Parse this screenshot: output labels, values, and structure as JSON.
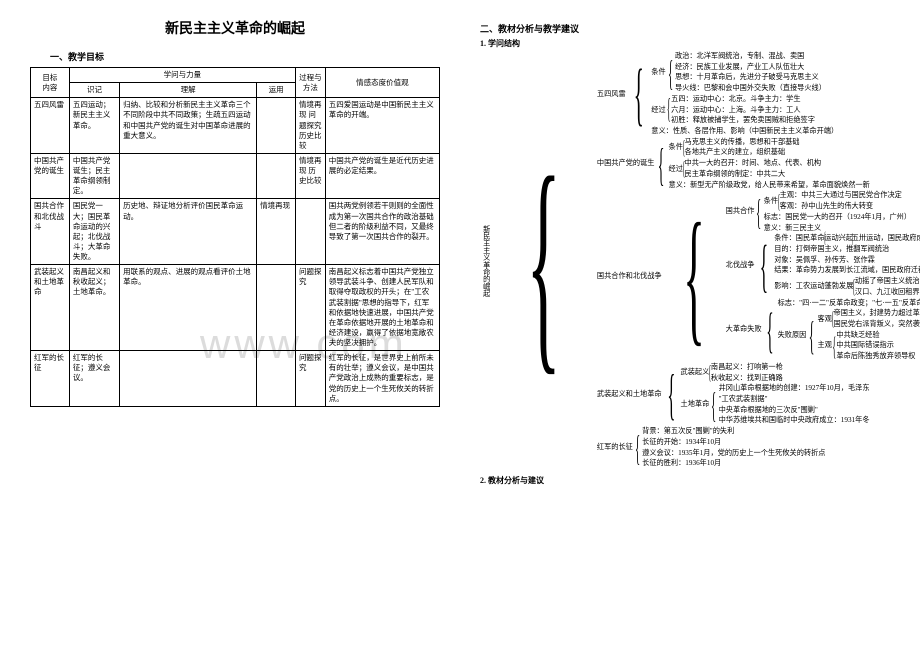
{
  "title": "新民主主义革命的崛起",
  "left": {
    "section1": "一、教学目标",
    "table": {
      "hdr_target": "目标",
      "hdr_content": "内容",
      "hdr_knowledge": "学问与力量",
      "hdr_memory": "识记",
      "hdr_understand": "理解",
      "hdr_apply": "运用",
      "hdr_process": "过程与方法",
      "hdr_values": "情感态度价值观",
      "rows": [
        {
          "c1": "五四风雷",
          "c2": "五四运动；新民主主义革命。",
          "c3": "归纳、比较和分析新民主主义革命三个不同阶段中共不同政策；生疏五四运动和中国共产党的诞生对中国革命进展的重大意义。",
          "c4": "",
          "c5": "情境再现 问题探究 历史比较",
          "c6": "五四爱国运动是中国新民主主义革命的开端。"
        },
        {
          "c1": "中国共产党的诞生",
          "c2": "中国共产党诞生；民主革命纲领制定。",
          "c3": "",
          "c4": "",
          "c5": "情境再现 历史比较",
          "c6": "中国共产党的诞生是近代历史进展的必定结果。"
        },
        {
          "c1": "国共合作和北伐战斗",
          "c2": "国民党一大；国民革命运动的兴起；北伐战斗；大革命失败。",
          "c3": "历史地、辩证地分析评价国民革命运动。",
          "c4": "情境再现",
          "c5": "",
          "c6": "国共两党例领若干则则的全面性成为第一次国共合作的政治基础 但二者的阶级利益不同，又最终导致了第一次国共合作的裂开。"
        },
        {
          "c1": "武装起义和土地革命",
          "c2": "南昌起义和秋收起义；土地革命。",
          "c3": "用联系的观点、进展的观点看评价土地革命。",
          "c4": "",
          "c5": "问题探究",
          "c6": "南昌起义标志着中国共产党独立领导武装斗争、创建人民军队和取得夺取政权的开头；在\"工农武装割据\"思想的指导下，红军和依据地快速进展，中国共产党在革命依据地开展的土地革命和经济建设，赢得了依据地宽敞农夫的坚决拥护。"
        },
        {
          "c1": "红军的长征",
          "c2": "红军的长征；遵义会议。",
          "c3": "",
          "c4": "",
          "c5": "问题探究",
          "c6": "红军的长征，是世界史上前所未有的壮举；遵义会议，是中国共产党政治上成熟的重要标志，是党的历史上一个生死攸关的转折点。"
        }
      ]
    }
  },
  "right": {
    "section2": "二、教材分析与教学建议",
    "sub1": "1. 学问结构",
    "sub2": "2. 教材分析与建议",
    "tree": {
      "root": "新民主主义革命的崛起",
      "n1": {
        "label": "五四风雷",
        "cond_label": "条件",
        "cond": [
          "政治：北洋军阀统治，专制、混战、卖国",
          "经济：民族工业发展，产业工人队伍壮大",
          "思想：十月革命后，先进分子破受马克思主义",
          "导火线：巴黎和会中国外交失败（直接导火线）"
        ],
        "proc_label": "经过",
        "proc": [
          "五四：运动中心：北京。斗争主力：学生",
          "六月：运动中心：上海。斗争主力：工人",
          "初胜：释放被捕学生，罢免卖国贼和拒绝签字"
        ],
        "sig_label": "意义",
        "sig": [
          "意义：性质、各层作用、影响（中国新民主主义革命开端）"
        ]
      },
      "n2": {
        "label": "中国共产党的诞生",
        "cond": [
          "条件",
          "马克思主义的传播，思想和干部基础",
          "各地共产主义的建立，组织基础"
        ],
        "proc": [
          "经过",
          "中共一大的召开：时间、地点、代表、机构",
          "民主革命纲领的制定：中共二大"
        ],
        "sig": [
          "意义：新型无产阶级政党，给人民带来希望，革命面貌焕然一新"
        ]
      },
      "n3": {
        "label": "国共合作和北伐战争",
        "gg_label": "国共合作",
        "gg": [
          "条件",
          "主观：中共三大通过与国民党合作决定",
          "客观：孙中山先生的伟大转变",
          "标志：国民党一大的召开（1924年1月，广州）",
          "意义：新三民主义"
        ],
        "bf_label": "北伐战争",
        "bf": [
          "条件：国民革命",
          "运动兴起",
          "五卅运动，国民政府成立，广东革命根据地统一",
          "目的：打倒帝国主义，推翻军阀统治",
          "对象：吴佩孚、孙传芳、张作霖",
          "结果：革命势力发展到长江流域，国民政府迁都武汉",
          "影响：工农运动蓬勃发展",
          "大力",
          "动摇了帝国主义统治中国的根基",
          "汉口、九江收回租界，蒋介石越权",
          "革命阵营内部发生危机，蒋介石反革命面貌暴露"
        ],
        "dg_label": "大革命失败",
        "dg": [
          "标志：\"四·一二\"反革命政变；\"七·一五\"反革命政变",
          "客观",
          "帝国主义，封建势力超过革命力量",
          "国民党右派背叛义，突然袭击革命",
          "失败原因",
          "中共缺乏经验",
          "中共国际错误指示",
          "主观",
          "革命后陈独秀放弃领导权"
        ]
      },
      "n4": {
        "label": "武装起义和土地革命",
        "qy": [
          "武装起义",
          "南昌起义：打响第一枪",
          "秋收起义：找到正确路"
        ],
        "td": [
          "土地革命",
          "井冈山革命根据地的创建：1927年10月，毛泽东",
          "\"工农武装割据\"",
          "中央革命根据地的三次反\"围剿\"",
          "中华苏维埃共和国临时中央政府成立：1931年冬"
        ]
      },
      "n5": {
        "label": "红军的长征",
        "items": [
          "背景：第五次反\"围剿\"的失利",
          "长征的开始：1934年10月",
          "遵义会议：1935年1月，党的历史上一个生死攸关的转折点",
          "长征的胜利：1936年10月"
        ]
      }
    }
  }
}
